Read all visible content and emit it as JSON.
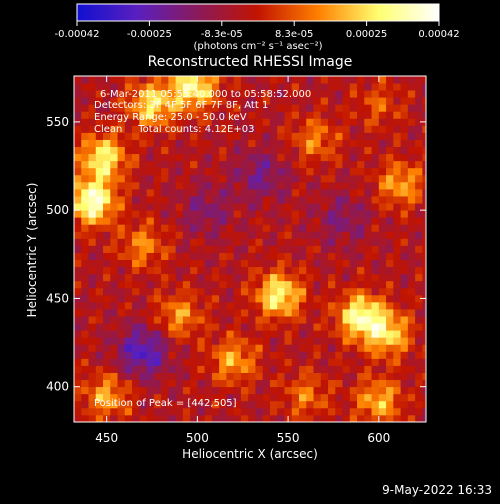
{
  "chart_data": {
    "type": "heatmap",
    "title": "Reconstructed RHESSI Image",
    "xlabel": "Heliocentric X (arcsec)",
    "ylabel": "Heliocentric Y (arcsec)",
    "xlim": [
      432,
      626
    ],
    "ylim": [
      380,
      576
    ],
    "x_ticks": [
      "450",
      "500",
      "550",
      "600"
    ],
    "y_ticks": [
      "400",
      "450",
      "500",
      "550"
    ],
    "colorbar": {
      "range": [
        -0.00042,
        0.00042
      ],
      "tick_labels": [
        "-0.00042",
        "-0.00025",
        "-8.3e-05",
        "8.3e-05",
        "0.00025",
        "0.00042"
      ],
      "unit_label": "(photons cm⁻² s⁻¹ asec⁻²)",
      "colors": [
        "#1010d0",
        "#5a1fbf",
        "#8a1a5a",
        "#c21400",
        "#ff8000",
        "#ffff70",
        "#ffffff"
      ]
    },
    "annotations": {
      "time_range": "6-Mar-2011 05:55:40.000 to 05:58:52.000",
      "detectors": "Detectors: 3F 4F 5F 6F 7F 8F, Att 1",
      "energy_range": "Energy Range: 25.0 - 50.0 keV",
      "clean_counts": "Clean     Total counts: 4.12E+03",
      "peak_position": "Position of Peak = [442,505]"
    },
    "hot_spots": [
      {
        "x": 442,
        "y": 505,
        "value": 0.00042
      },
      {
        "x": 448,
        "y": 530,
        "value": 0.00033
      },
      {
        "x": 498,
        "y": 570,
        "value": 0.00035
      },
      {
        "x": 475,
        "y": 560,
        "value": 0.0003
      },
      {
        "x": 545,
        "y": 452,
        "value": 0.00034
      },
      {
        "x": 590,
        "y": 440,
        "value": 0.00036
      },
      {
        "x": 605,
        "y": 430,
        "value": 0.00028
      },
      {
        "x": 520,
        "y": 415,
        "value": 0.00022
      },
      {
        "x": 490,
        "y": 440,
        "value": 0.0002
      },
      {
        "x": 470,
        "y": 480,
        "value": 0.00018
      },
      {
        "x": 565,
        "y": 540,
        "value": 0.00017
      },
      {
        "x": 612,
        "y": 515,
        "value": 0.00022
      },
      {
        "x": 450,
        "y": 395,
        "value": 0.00022
      },
      {
        "x": 600,
        "y": 392,
        "value": 0.00024
      },
      {
        "x": 560,
        "y": 395,
        "value": 0.00016
      },
      {
        "x": 600,
        "y": 560,
        "value": 0.00012
      }
    ],
    "cold_spots": [
      {
        "x": 470,
        "y": 420,
        "value": -0.00025
      },
      {
        "x": 535,
        "y": 520,
        "value": -0.00015
      },
      {
        "x": 580,
        "y": 495,
        "value": -0.00012
      },
      {
        "x": 505,
        "y": 500,
        "value": -0.00012
      }
    ]
  },
  "footer": {
    "timestamp": "9-May-2022 16:33"
  }
}
